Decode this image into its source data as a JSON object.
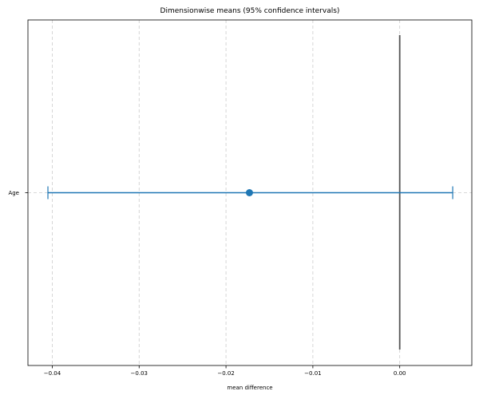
{
  "chart_data": {
    "type": "scatter",
    "title": "Dimensionwise means (95% confidence intervals)",
    "xlabel": "mean difference",
    "ylabel": "",
    "xlim": [
      -0.0428,
      0.0083
    ],
    "grid": true,
    "reference_line_x": 0.0,
    "categories": [
      "Age"
    ],
    "means": [
      -0.0173
    ],
    "ci_lower": [
      -0.0405
    ],
    "ci_upper": [
      0.0061
    ],
    "x_ticks": [
      -0.04,
      -0.03,
      -0.02,
      -0.01,
      0.0
    ],
    "x_tick_labels": [
      "−0.04",
      "−0.03",
      "−0.02",
      "−0.01",
      "0.00"
    ],
    "colors": {
      "series": "#1f77b4",
      "reference": "#555555",
      "grid": "#cccccc"
    }
  }
}
